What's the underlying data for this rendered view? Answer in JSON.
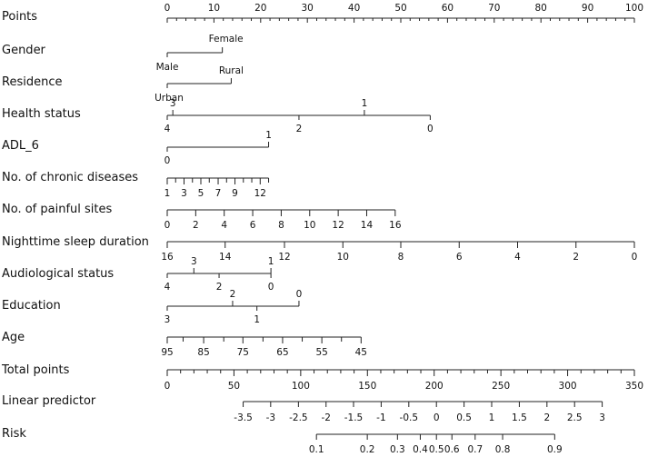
{
  "chart_data": {
    "type": "nomogram",
    "title": "",
    "points_scale": {
      "label": "Points",
      "ticks": [
        0,
        10,
        20,
        30,
        40,
        50,
        60,
        70,
        80,
        90,
        100
      ]
    },
    "variables": [
      {
        "label": "Gender",
        "levels": [
          {
            "name": "Male",
            "points": 0
          },
          {
            "name": "Female",
            "points": 11.8
          }
        ]
      },
      {
        "label": "Residence",
        "levels": [
          {
            "name": "Urban",
            "points": 0
          },
          {
            "name": "Rural",
            "points": 13.7
          }
        ]
      },
      {
        "label": "Health status",
        "levels": [
          {
            "name": "4",
            "points": 0
          },
          {
            "name": "3",
            "points": 1.2
          },
          {
            "name": "2",
            "points": 28.2
          },
          {
            "name": "1",
            "points": 42.2
          },
          {
            "name": "0",
            "points": 56.3
          }
        ]
      },
      {
        "label": "ADL_6",
        "levels": [
          {
            "name": "0",
            "points": 0
          },
          {
            "name": "1",
            "points": 21.7
          }
        ]
      },
      {
        "label": "No. of chronic diseases",
        "values": [
          1,
          2,
          3,
          4,
          5,
          6,
          7,
          8,
          9,
          10,
          11,
          12,
          13
        ],
        "points": [
          0,
          1.8,
          3.6,
          5.4,
          7.2,
          9.0,
          10.9,
          12.7,
          14.5,
          16.3,
          18.1,
          19.9,
          21.7
        ],
        "tick_labels": [
          "1",
          "3",
          "5",
          "7",
          "9",
          "12"
        ]
      },
      {
        "label": "No. of painful sites",
        "values": [
          0,
          2,
          4,
          6,
          8,
          10,
          12,
          14,
          16
        ],
        "points": [
          0,
          6.1,
          12.2,
          18.3,
          24.4,
          30.5,
          36.6,
          42.7,
          48.8
        ],
        "tick_labels": [
          "0",
          "2",
          "4",
          "6",
          "8",
          "10",
          "12",
          "14",
          "16"
        ]
      },
      {
        "label": "Nighttime sleep duration",
        "values": [
          16,
          14,
          12,
          10,
          8,
          6,
          4,
          2,
          0
        ],
        "points": [
          0,
          12.4,
          25.1,
          37.6,
          50.0,
          62.5,
          75.0,
          87.5,
          100
        ],
        "tick_labels": [
          "16",
          "14",
          "12",
          "10",
          "8",
          "6",
          "4",
          "2",
          "0"
        ]
      },
      {
        "label": "Audiological status",
        "levels": [
          {
            "name": "4",
            "points": 0
          },
          {
            "name": "3",
            "points": 5.7
          },
          {
            "name": "2",
            "points": 11.1
          },
          {
            "name": "1",
            "points": 22.2
          },
          {
            "name": "0",
            "points": 22.2
          }
        ]
      },
      {
        "label": "Education",
        "levels": [
          {
            "name": "3",
            "points": 0
          },
          {
            "name": "2",
            "points": 14.0
          },
          {
            "name": "1",
            "points": 19.2
          },
          {
            "name": "0",
            "points": 28.2
          }
        ]
      },
      {
        "label": "Age",
        "values": [
          95,
          90,
          85,
          80,
          75,
          70,
          65,
          60,
          55,
          50,
          45
        ],
        "points": [
          0,
          3.4,
          7.8,
          12.1,
          16.2,
          20.5,
          24.7,
          28.9,
          33.1,
          37.3,
          41.5
        ],
        "tick_labels": [
          "95",
          "85",
          "75",
          "65",
          "55",
          "45"
        ]
      }
    ],
    "total_points": {
      "label": "Total points",
      "ticks": [
        0,
        50,
        100,
        150,
        200,
        250,
        300,
        350
      ]
    },
    "linear_predictor": {
      "label": "Linear predictor",
      "values": [
        -3.5,
        -3,
        -2.5,
        -2,
        -1.5,
        -1,
        -0.5,
        0,
        0.5,
        1,
        1.5,
        2,
        2.5,
        3
      ],
      "total_points": [
        56.9,
        77.5,
        98.3,
        119.0,
        139.6,
        160.3,
        181.0,
        201.7,
        222.4,
        243.1,
        263.8,
        284.5,
        305.2,
        325.9
      ]
    },
    "risk": {
      "label": "Risk",
      "values": [
        0.1,
        0.2,
        0.3,
        0.4,
        0.5,
        0.6,
        0.7,
        0.8,
        0.9
      ],
      "total_points": [
        111.8,
        149.9,
        172.5,
        189.6,
        201.7,
        213.3,
        230.7,
        251.3,
        290.3
      ],
      "tick_labels": [
        "0.1",
        "0.2",
        "0.3",
        "0.4",
        "0.5",
        "0.6",
        "0.7",
        "0.8",
        "0.9"
      ]
    }
  }
}
